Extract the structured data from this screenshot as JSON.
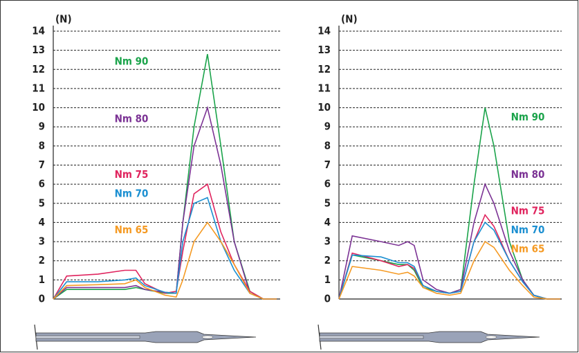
{
  "chart_data": [
    {
      "type": "line",
      "y_label": "(N)",
      "ylim": [
        0,
        14
      ],
      "yticks": [
        0,
        1,
        2,
        3,
        4,
        5,
        6,
        7,
        8,
        9,
        10,
        11,
        12,
        13,
        14
      ],
      "grid": true,
      "xlim": [
        0,
        100
      ],
      "x": [
        0,
        6,
        20,
        32,
        37,
        41,
        50,
        55,
        58,
        63,
        69,
        75,
        81,
        88,
        94,
        100
      ],
      "series": [
        {
          "name": "Nm 90",
          "color": "#1aa34a",
          "values": [
            0,
            0.5,
            0.5,
            0.5,
            0.6,
            0.5,
            0.3,
            0.3,
            4,
            9,
            12.8,
            8,
            3,
            0.4,
            0,
            0
          ]
        },
        {
          "name": "Nm 80",
          "color": "#7b3294",
          "values": [
            0,
            0.6,
            0.6,
            0.6,
            0.7,
            0.5,
            0.35,
            0.3,
            4,
            8,
            10,
            7,
            3,
            0.3,
            0,
            0
          ]
        },
        {
          "name": "Nm 75",
          "color": "#e0245e",
          "values": [
            0,
            1.2,
            1.3,
            1.5,
            1.5,
            0.8,
            0.3,
            0.4,
            2.5,
            5.5,
            6,
            3.5,
            1.8,
            0.4,
            0,
            0
          ]
        },
        {
          "name": "Nm 70",
          "color": "#1b8fd1",
          "values": [
            0,
            0.9,
            0.9,
            1,
            1.1,
            0.7,
            0.35,
            0.3,
            3,
            5,
            5.3,
            3,
            1.5,
            0.3,
            0,
            0
          ]
        },
        {
          "name": "Nm 65",
          "color": "#f59a23",
          "values": [
            0,
            0.7,
            0.75,
            0.8,
            1,
            0.6,
            0.2,
            0.1,
            1,
            3,
            4,
            3,
            1.8,
            0.3,
            0,
            0
          ]
        }
      ]
    },
    {
      "type": "line",
      "y_label": "(N)",
      "ylim": [
        0,
        14
      ],
      "yticks": [
        0,
        1,
        2,
        3,
        4,
        5,
        6,
        7,
        8,
        9,
        10,
        11,
        12,
        13,
        14
      ],
      "grid": true,
      "xlim": [
        0,
        100
      ],
      "x": [
        0,
        6,
        19,
        27,
        31,
        34,
        38,
        44,
        50,
        55,
        61,
        66,
        70,
        77,
        83,
        88,
        94,
        100
      ],
      "series": [
        {
          "name": "Nm 90",
          "color": "#1aa34a",
          "values": [
            0,
            2.3,
            2,
            1.8,
            1.8,
            1.5,
            0.6,
            0.4,
            0.3,
            0.5,
            6,
            10,
            8,
            3,
            1,
            0.2,
            0,
            0
          ]
        },
        {
          "name": "Nm 80",
          "color": "#7b3294",
          "values": [
            0,
            3.3,
            3,
            2.8,
            3,
            2.8,
            1,
            0.5,
            0.3,
            0.5,
            4,
            6,
            5,
            2.5,
            1,
            0.2,
            0,
            0
          ]
        },
        {
          "name": "Nm 75",
          "color": "#e0245e",
          "values": [
            0,
            2.4,
            2,
            1.7,
            1.8,
            1.6,
            0.7,
            0.4,
            0.3,
            0.4,
            3,
            4.4,
            3.8,
            2,
            0.9,
            0.2,
            0,
            0
          ]
        },
        {
          "name": "Nm 70",
          "color": "#1b8fd1",
          "values": [
            0,
            2.3,
            2.2,
            1.9,
            1.9,
            1.7,
            0.7,
            0.4,
            0.3,
            0.4,
            3,
            4,
            3.6,
            2,
            0.9,
            0.2,
            0,
            0
          ]
        },
        {
          "name": "Nm 65",
          "color": "#f59a23",
          "values": [
            0,
            1.7,
            1.5,
            1.3,
            1.4,
            1.2,
            0.6,
            0.3,
            0.2,
            0.3,
            2,
            3,
            2.7,
            1.5,
            0.7,
            0.1,
            0,
            0
          ]
        }
      ]
    }
  ]
}
